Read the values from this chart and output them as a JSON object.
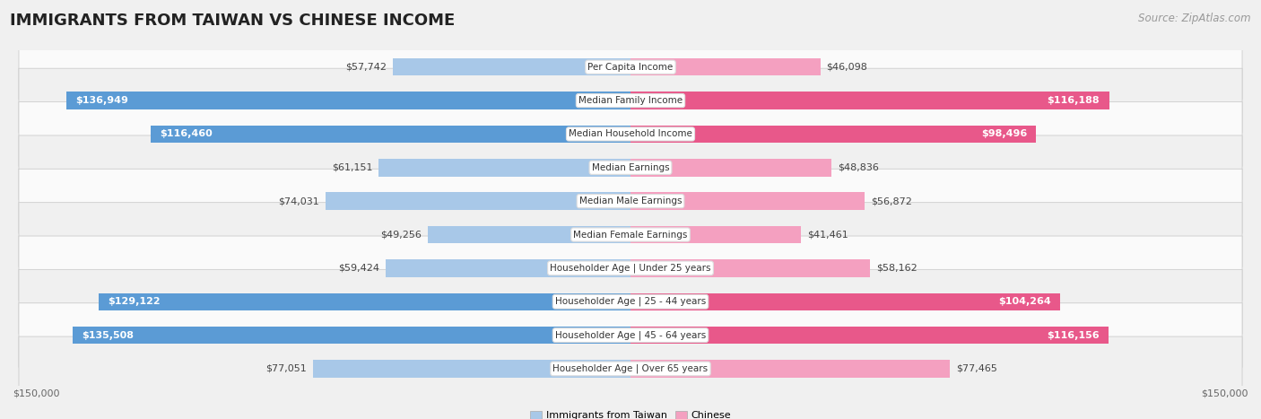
{
  "title": "IMMIGRANTS FROM TAIWAN VS CHINESE INCOME",
  "source": "Source: ZipAtlas.com",
  "categories": [
    "Per Capita Income",
    "Median Family Income",
    "Median Household Income",
    "Median Earnings",
    "Median Male Earnings",
    "Median Female Earnings",
    "Householder Age | Under 25 years",
    "Householder Age | 25 - 44 years",
    "Householder Age | 45 - 64 years",
    "Householder Age | Over 65 years"
  ],
  "taiwan_values": [
    57742,
    136949,
    116460,
    61151,
    74031,
    49256,
    59424,
    129122,
    135508,
    77051
  ],
  "chinese_values": [
    46098,
    116188,
    98496,
    48836,
    56872,
    41461,
    58162,
    104264,
    116156,
    77465
  ],
  "taiwan_color_light": "#a8c8e8",
  "taiwan_color_dark": "#5b9bd5",
  "chinese_color_light": "#f4a0c0",
  "chinese_color_dark": "#e8588a",
  "taiwan_label": "Immigrants from Taiwan",
  "chinese_label": "Chinese",
  "x_max": 150000,
  "background_color": "#f0f0f0",
  "row_bg_even": "#fafafa",
  "row_bg_odd": "#f0f0f0",
  "title_fontsize": 13,
  "source_fontsize": 8.5,
  "value_fontsize": 8,
  "category_fontsize": 7.5,
  "axis_fontsize": 8
}
